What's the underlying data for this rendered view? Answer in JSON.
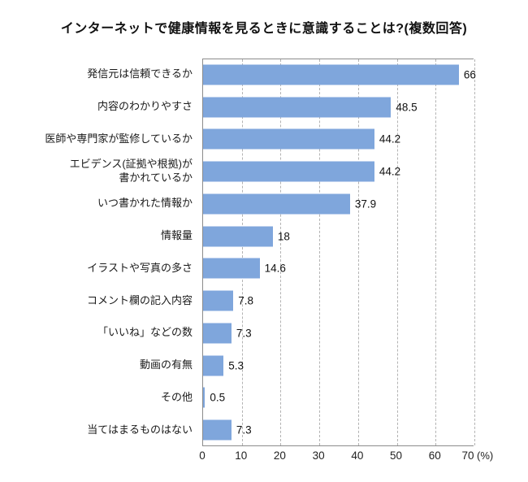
{
  "title": "インターネットで健康情報を見るときに意識することは?(複数回答)",
  "chart_data": {
    "type": "bar",
    "orientation": "horizontal",
    "title": "インターネットで健康情報を見るときに意識することは?(複数回答)",
    "categories": [
      "発信元は信頼できるか",
      "内容のわかりやすさ",
      "医師や専門家が監修しているか",
      "エビデンス(証拠や根拠)が\n書かれているか",
      "いつ書かれた情報か",
      "情報量",
      "イラストや写真の多さ",
      "コメント欄の記入内容",
      "「いいね」などの数",
      "動画の有無",
      "その他",
      "当てはまるものはない"
    ],
    "values": [
      66,
      48.5,
      44.2,
      44.2,
      37.9,
      18,
      14.6,
      7.8,
      7.3,
      5.3,
      0.5,
      7.3
    ],
    "value_labels": [
      "66",
      "48.5",
      "44.2",
      "44.2",
      "37.9",
      "18",
      "14.6",
      "7.8",
      "7.3",
      "5.3",
      "0.5",
      "7.3"
    ],
    "xlabel": "",
    "ylabel": "",
    "xlim": [
      0,
      70
    ],
    "x_ticks": [
      0,
      10,
      20,
      30,
      40,
      50,
      60,
      70
    ],
    "x_unit": "(%)",
    "grid": "dashed-vertical",
    "legend": "none",
    "bar_color": "#7FA6DC",
    "axis_color": "#8c8c8c",
    "gridline_color": "#b3b3b3"
  }
}
